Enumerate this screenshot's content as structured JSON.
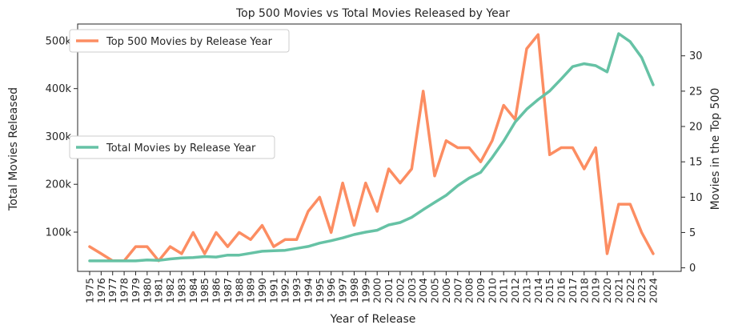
{
  "chart_data": {
    "type": "line",
    "title": "Top 500 Movies vs Total Movies Released by Year",
    "xlabel": "Year of Release",
    "ylabel_left": "Total Movies Released",
    "ylabel_right": "Movies in the Top 500",
    "x": [
      1975,
      1976,
      1977,
      1978,
      1979,
      1980,
      1981,
      1982,
      1983,
      1984,
      1985,
      1986,
      1987,
      1988,
      1989,
      1990,
      1991,
      1992,
      1993,
      1994,
      1995,
      1996,
      1997,
      1998,
      1999,
      2000,
      2001,
      2002,
      2003,
      2004,
      2005,
      2006,
      2007,
      2008,
      2009,
      2010,
      2011,
      2012,
      2013,
      2014,
      2015,
      2016,
      2017,
      2018,
      2019,
      2020,
      2021,
      2022,
      2023,
      2024
    ],
    "x_tick_labels": [
      "1975",
      "1976",
      "1977",
      "1978",
      "1979",
      "1980",
      "1981",
      "1982",
      "1983",
      "1984",
      "1985",
      "1986",
      "1987",
      "1988",
      "1989",
      "1990",
      "1991",
      "1992",
      "1993",
      "1994",
      "1995",
      "1996",
      "1997",
      "1998",
      "1999",
      "2000",
      "2001",
      "2002",
      "2003",
      "2004",
      "2005",
      "2006",
      "2007",
      "2008",
      "2009",
      "2010",
      "2011",
      "2012",
      "2013",
      "2014",
      "2015",
      "2016",
      "2017",
      "2018",
      "2019",
      "2020",
      "2021",
      "2022",
      "2023",
      "2024"
    ],
    "left_axis": {
      "ylim": [
        18000,
        535000
      ],
      "ticks": [
        100000,
        200000,
        300000,
        400000,
        500000
      ],
      "tick_labels": [
        "100k",
        "200k",
        "300k",
        "400k",
        "500k"
      ]
    },
    "right_axis": {
      "ylim": [
        -0.5,
        34.5
      ],
      "ticks": [
        0,
        5,
        10,
        15,
        20,
        25,
        30
      ],
      "tick_labels": [
        "0",
        "5",
        "10",
        "15",
        "20",
        "25",
        "30"
      ]
    },
    "series": [
      {
        "name": "Top 500 Movies by Release Year",
        "axis": "right",
        "color": "#fc8d62",
        "values": [
          3,
          2,
          1,
          1,
          3,
          3,
          1,
          3,
          2,
          5,
          2,
          5,
          3,
          5,
          4,
          6,
          3,
          4,
          4,
          8,
          10,
          5,
          12,
          6,
          12,
          8,
          14,
          12,
          14,
          25,
          13,
          18,
          17,
          17,
          15,
          18,
          23,
          21,
          31,
          33,
          16,
          17,
          17,
          14,
          17,
          2,
          9,
          9,
          5,
          2
        ]
      },
      {
        "name": "Total Movies by Release Year",
        "axis": "left",
        "color": "#66c2a5",
        "values": [
          40000,
          40000,
          40000,
          40000,
          40000,
          42000,
          41000,
          44000,
          46000,
          47000,
          49000,
          48000,
          52000,
          52000,
          56000,
          60000,
          61000,
          62000,
          66000,
          70000,
          77000,
          82000,
          88000,
          95000,
          100000,
          104000,
          115000,
          120000,
          131000,
          147000,
          162000,
          177000,
          197000,
          213000,
          225000,
          256000,
          290000,
          330000,
          357000,
          377000,
          395000,
          420000,
          446000,
          452000,
          448000,
          435000,
          515000,
          498000,
          465000,
          408000
        ]
      }
    ],
    "legends": [
      {
        "label": "Top 500 Movies by Release Year",
        "color": "#fc8d62",
        "placement": "upper-left"
      },
      {
        "label": "Total Movies by Release Year",
        "color": "#66c2a5",
        "placement": "center-left"
      }
    ],
    "grid": false
  }
}
